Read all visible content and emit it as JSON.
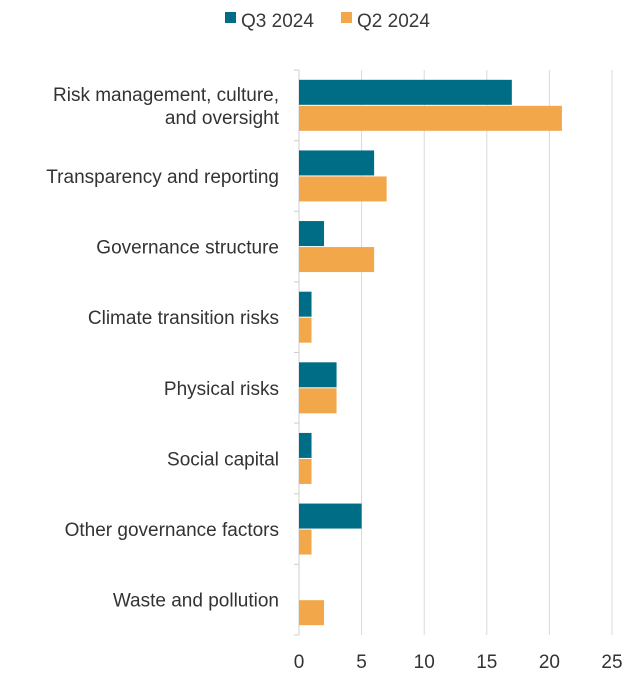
{
  "chart_data": {
    "type": "bar",
    "orientation": "horizontal",
    "title": "",
    "xlabel": "",
    "ylabel": "",
    "categories": [
      [
        "Risk management, culture,",
        "and oversight"
      ],
      [
        "Transparency and reporting"
      ],
      [
        "Governance structure"
      ],
      [
        "Climate transition risks"
      ],
      [
        "Physical risks"
      ],
      [
        "Social capital"
      ],
      [
        "Other governance factors"
      ],
      [
        "Waste and pollution"
      ]
    ],
    "series": [
      {
        "name": "Q3 2024",
        "color": "#006d87",
        "values": [
          17,
          6,
          2,
          1,
          3,
          1,
          5,
          0
        ]
      },
      {
        "name": "Q2 2024",
        "color": "#f2a74b",
        "values": [
          21,
          7,
          6,
          1,
          3,
          1,
          1,
          2
        ]
      }
    ],
    "xlim": [
      0,
      25
    ],
    "xticks": [
      "0",
      "5",
      "10",
      "15",
      "20",
      "25"
    ],
    "grid": "vertical",
    "legend": "top-center"
  }
}
